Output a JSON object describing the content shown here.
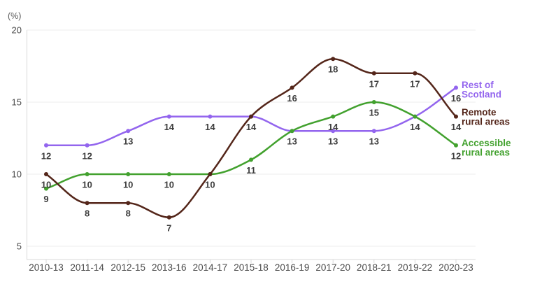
{
  "chart_data": {
    "type": "line",
    "title": "",
    "unit_label": "(%)",
    "xlabel": "",
    "ylabel": "(%)",
    "categories": [
      "2010-13",
      "2011-14",
      "2012-15",
      "2013-16",
      "2014-17",
      "2015-18",
      "2016-19",
      "2017-20",
      "2018-21",
      "2019-22",
      "2020-23"
    ],
    "yticks": [
      5,
      10,
      15,
      20
    ],
    "ylim": [
      5,
      20
    ],
    "grid": "horizontal-on",
    "legend_position": "right-of-line-ends",
    "series": [
      {
        "name": "Rest of Scotland",
        "legend_lines": [
          "Rest of",
          "Scotland"
        ],
        "color": "#9365ee",
        "values": [
          12,
          12,
          13,
          14,
          14,
          14,
          13,
          13,
          13,
          14,
          16
        ]
      },
      {
        "name": "Accessible rural areas",
        "legend_lines": [
          "Accessible",
          "rural areas"
        ],
        "color": "#42a12e",
        "values": [
          9,
          10,
          10,
          10,
          10,
          11,
          13,
          14,
          15,
          14,
          12
        ]
      },
      {
        "name": "Remote rural areas",
        "legend_lines": [
          "Remote",
          "rural areas"
        ],
        "color": "#54261a",
        "values": [
          10,
          8,
          8,
          7,
          10,
          14,
          16,
          18,
          17,
          17,
          14
        ]
      }
    ],
    "colors": {
      "value_label": "#3d3d3d",
      "axis_label": "#4a4a4a",
      "unit_label": "#5a5a5a",
      "gridline": "#ececec",
      "axis_line": "#d9d9d9"
    }
  }
}
